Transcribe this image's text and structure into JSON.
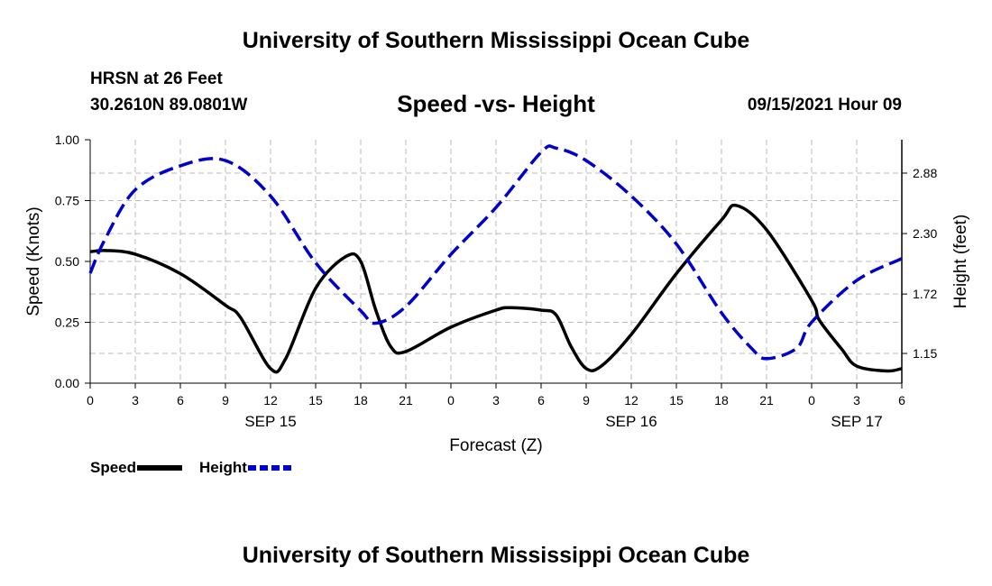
{
  "header": {
    "title": "University of Southern Mississippi Ocean Cube",
    "station": "HRSN at 26 Feet",
    "coordinates": "30.2610N  89.0801W",
    "subtitle": "Speed -vs- Height",
    "timestamp": "09/15/2021 Hour 09"
  },
  "footer": {
    "title": "University of Southern Mississippi Ocean Cube"
  },
  "colors": {
    "speed": "#000000",
    "height": "#0000cc",
    "grid": "#bbbbbb"
  },
  "chart_data": {
    "type": "line",
    "title": "Speed -vs- Height",
    "xlabel": "Forecast (Z)",
    "ylabel": "Speed (Knots)",
    "y2label": "Height (feet)",
    "x_unit": "hours since 2021-09-15 00Z",
    "xlim": [
      0,
      54
    ],
    "ylim": [
      0,
      1
    ],
    "y2lim": [
      0.865,
      3.2
    ],
    "x_ticks": [
      0,
      3,
      6,
      9,
      12,
      15,
      18,
      21,
      24,
      27,
      30,
      33,
      36,
      39,
      42,
      45,
      48,
      51,
      54
    ],
    "x_tick_labels": [
      "0",
      "3",
      "6",
      "9",
      "12",
      "15",
      "18",
      "21",
      "0",
      "3",
      "6",
      "9",
      "12",
      "15",
      "18",
      "21",
      "0",
      "3",
      "6"
    ],
    "day_labels": [
      {
        "x": 12,
        "label": "SEP 15"
      },
      {
        "x": 36,
        "label": "SEP 16"
      },
      {
        "x": 51,
        "label": "SEP 17"
      }
    ],
    "y_ticks": [
      0,
      0.25,
      0.5,
      0.75,
      1.0
    ],
    "y_tick_labels": [
      "0.00",
      "0.25",
      "0.50",
      "0.75",
      "1.00"
    ],
    "y2_ticks": [
      1.15,
      1.72,
      2.3,
      2.88
    ],
    "y2_tick_labels": [
      "1.15",
      "1.72",
      "2.30",
      "2.88"
    ],
    "grid": true,
    "legend": "bottom-left",
    "series": [
      {
        "name": "Speed",
        "axis": "left",
        "style": "solid",
        "x": [
          0,
          1,
          3,
          6,
          9,
          10,
          12,
          13,
          15,
          17,
          18,
          19,
          20,
          21,
          24,
          27,
          28,
          30,
          31,
          32,
          33,
          34,
          36,
          39,
          42,
          43,
          45,
          48,
          48.5,
          50,
          51,
          53,
          54
        ],
        "values": [
          0.54,
          0.545,
          0.53,
          0.45,
          0.32,
          0.27,
          0.06,
          0.1,
          0.39,
          0.52,
          0.5,
          0.3,
          0.15,
          0.13,
          0.23,
          0.3,
          0.31,
          0.3,
          0.28,
          0.15,
          0.06,
          0.07,
          0.2,
          0.45,
          0.67,
          0.73,
          0.63,
          0.34,
          0.26,
          0.14,
          0.07,
          0.05,
          0.06
        ]
      },
      {
        "name": "Height",
        "axis": "right",
        "style": "dashed",
        "x": [
          0,
          1,
          3,
          6,
          9,
          12,
          15,
          18,
          19,
          21,
          24,
          27,
          30,
          31,
          33,
          36,
          39,
          42,
          44,
          45,
          47,
          48,
          51,
          54
        ],
        "values": [
          1.92,
          2.25,
          2.72,
          2.95,
          3.0,
          2.66,
          2.02,
          1.56,
          1.44,
          1.6,
          2.1,
          2.55,
          3.08,
          3.12,
          3.0,
          2.66,
          2.2,
          1.54,
          1.2,
          1.1,
          1.2,
          1.45,
          1.85,
          2.06
        ]
      }
    ]
  }
}
